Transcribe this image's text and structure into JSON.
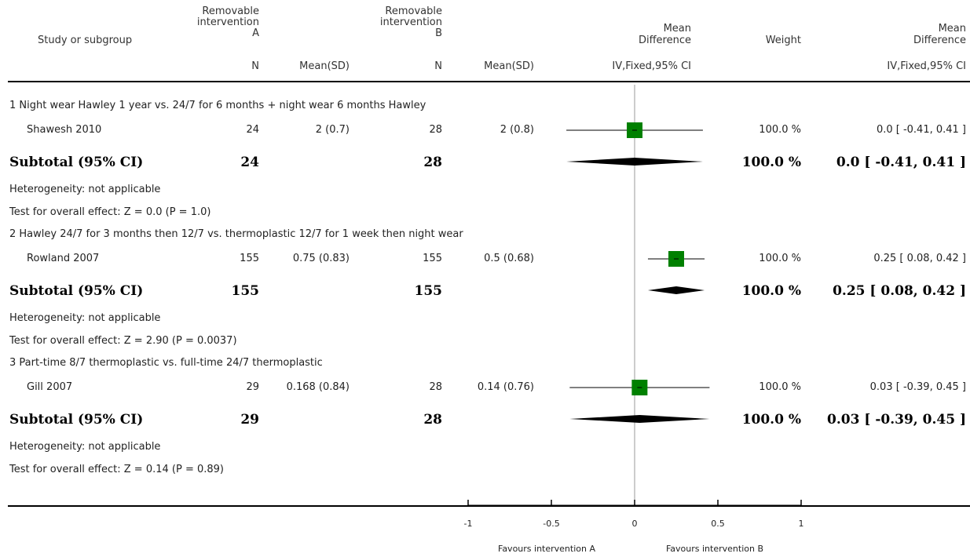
{
  "header": {
    "study_col": "Study or subgroup",
    "group_a": [
      "Removable",
      "intervention",
      "A"
    ],
    "group_b": [
      "Removable",
      "intervention",
      "B"
    ],
    "md_col": [
      "Mean",
      "Difference"
    ],
    "weight_col": "Weight",
    "md2_col": [
      "Mean",
      "Difference"
    ],
    "sub_n_a": "N",
    "sub_mean_a": "Mean(SD)",
    "sub_n_b": "N",
    "sub_mean_b": "Mean(SD)",
    "sub_method": "IV,Fixed,95% CI",
    "sub_method2": "IV,Fixed,95% CI"
  },
  "groups": [
    {
      "title": "1 Night wear Hawley 1 year vs. 24/7 for 6 months + night wear 6 months Hawley",
      "study": {
        "name": "Shawesh 2010",
        "n_a": "24",
        "mean_a": "2 (0.7)",
        "n_b": "28",
        "mean_b": "2 (0.8)",
        "weight": "100.0 %",
        "ci": "0.0 [ -0.41, 0.41 ]"
      },
      "subtotal": {
        "label": "Subtotal (95% CI)",
        "n_a": "24",
        "n_b": "28",
        "weight": "100.0 %",
        "ci": "0.0 [ -0.41, 0.41 ]"
      },
      "heterogeneity": "Heterogeneity: not applicable",
      "overall": "Test for overall effect: Z = 0.0 (P = 1.0)"
    },
    {
      "title": "2 Hawley 24/7 for 3 months then 12/7 vs. thermoplastic 12/7 for 1 week then night wear",
      "study": {
        "name": "Rowland 2007",
        "n_a": "155",
        "mean_a": "0.75 (0.83)",
        "n_b": "155",
        "mean_b": "0.5 (0.68)",
        "weight": "100.0 %",
        "ci": "0.25 [ 0.08, 0.42 ]"
      },
      "subtotal": {
        "label": "Subtotal (95% CI)",
        "n_a": "155",
        "n_b": "155",
        "weight": "100.0 %",
        "ci": "0.25 [ 0.08, 0.42 ]"
      },
      "heterogeneity": "Heterogeneity: not applicable",
      "overall": "Test for overall effect: Z = 2.90 (P = 0.0037)"
    },
    {
      "title": "3 Part-time 8/7 thermoplastic vs. full-time 24/7 thermoplastic",
      "study": {
        "name": "Gill 2007",
        "n_a": "29",
        "mean_a": "0.168 (0.84)",
        "n_b": "28",
        "mean_b": "0.14 (0.76)",
        "weight": "100.0 %",
        "ci": "0.03 [ -0.39, 0.45 ]"
      },
      "subtotal": {
        "label": "Subtotal (95% CI)",
        "n_a": "29",
        "n_b": "28",
        "weight": "100.0 %",
        "ci": "0.03 [ -0.39, 0.45 ]"
      },
      "heterogeneity": "Heterogeneity: not applicable",
      "overall": "Test for overall effect: Z = 0.14 (P = 0.89)"
    }
  ],
  "axis": {
    "tick_labels": [
      "-1",
      "-0.5",
      "0",
      "0.5",
      "1"
    ],
    "favours_left": "Favours intervention A",
    "favours_right": "Favours intervention B"
  },
  "colors": {
    "square": "#008000",
    "diamond": "#000000",
    "axis": "#000000",
    "zero_line": "#999999"
  },
  "chart_data": {
    "type": "forest",
    "xlim": [
      -1,
      1
    ],
    "ticks": [
      -1,
      -0.5,
      0,
      0.5,
      1
    ],
    "studies": [
      {
        "name": "Shawesh 2010",
        "md": 0.0,
        "lo": -0.41,
        "hi": 0.41,
        "weight": 100.0
      },
      {
        "name": "Rowland 2007",
        "md": 0.25,
        "lo": 0.08,
        "hi": 0.42,
        "weight": 100.0
      },
      {
        "name": "Gill 2007",
        "md": 0.03,
        "lo": -0.39,
        "hi": 0.45,
        "weight": 100.0
      }
    ],
    "subtotals": [
      {
        "md": 0.0,
        "lo": -0.41,
        "hi": 0.41
      },
      {
        "md": 0.25,
        "lo": 0.08,
        "hi": 0.42
      },
      {
        "md": 0.03,
        "lo": -0.39,
        "hi": 0.45
      }
    ]
  }
}
